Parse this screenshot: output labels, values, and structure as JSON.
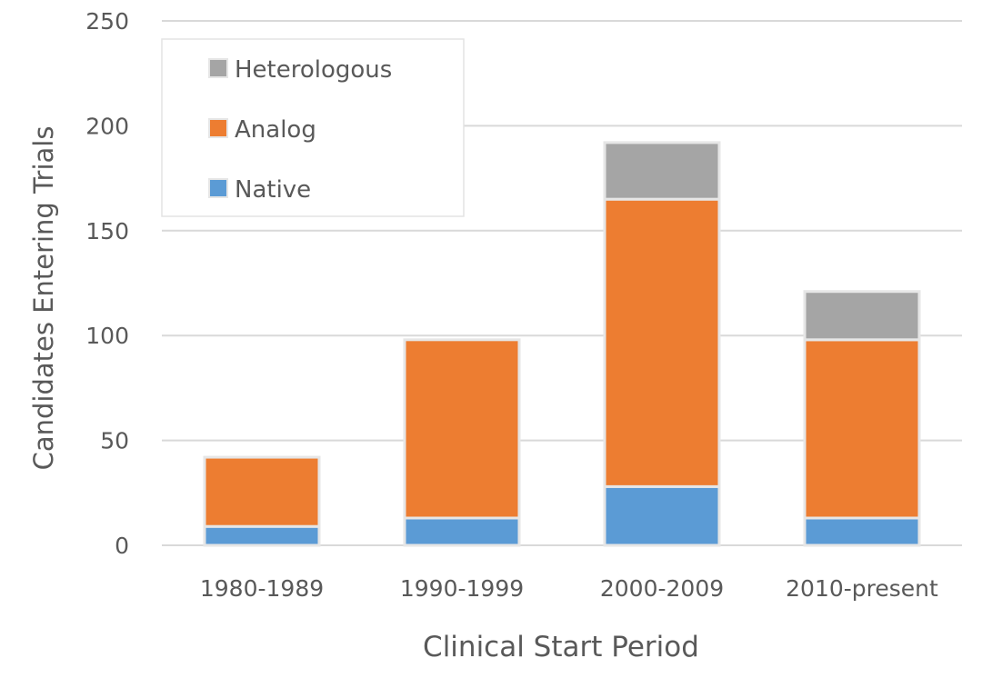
{
  "chart_data": {
    "type": "bar",
    "stacked": true,
    "title": "",
    "xlabel": "Clinical Start Period",
    "ylabel": "Candidates Entering Trials",
    "ylim": [
      0,
      250
    ],
    "yticks": [
      0,
      50,
      100,
      150,
      200,
      250
    ],
    "grid": true,
    "legend_position": "top-left",
    "categories": [
      "1980-1989",
      "1990-1999",
      "2000-2009",
      "2010-present"
    ],
    "series": [
      {
        "name": "Native",
        "color": "#5b9bd5",
        "values": [
          9,
          13,
          28,
          13
        ]
      },
      {
        "name": "Analog",
        "color": "#ed7d31",
        "values": [
          33,
          85,
          137,
          85
        ]
      },
      {
        "name": "Heterologous",
        "color": "#a5a5a5",
        "values": [
          0,
          0,
          27,
          23
        ]
      }
    ],
    "legend_order": [
      "Heterologous",
      "Analog",
      "Native"
    ]
  }
}
